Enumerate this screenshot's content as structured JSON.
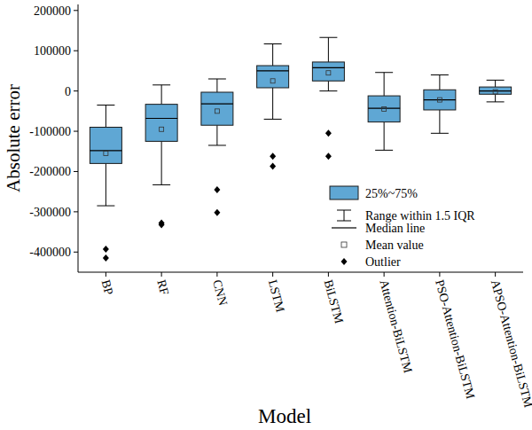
{
  "chart_data": {
    "type": "box",
    "x_label": "Model",
    "y_label": "Absolute error",
    "categories": [
      "BP",
      "RF",
      "CNN",
      "LSTM",
      "BiLSTM",
      "Attention-BiLSTM",
      "PSO-Attention-BiLSTM",
      "APSO-Attention-BiLSTM"
    ],
    "series": [
      {
        "name": "25%~75%",
        "color": "#5fa7d4",
        "whisker_low": [
          -285000,
          -233000,
          -135000,
          -70000,
          0,
          -147000,
          -105000,
          -27000
        ],
        "q1": [
          -180000,
          -125000,
          -85000,
          8000,
          25000,
          -77000,
          -47000,
          -8000
        ],
        "median": [
          -148000,
          -68000,
          -32000,
          50000,
          58000,
          -43000,
          -22000,
          0
        ],
        "q3": [
          -90000,
          -33000,
          -3000,
          63000,
          72000,
          -12000,
          3000,
          10000
        ],
        "whisker_high": [
          -35000,
          15000,
          30000,
          117000,
          133000,
          46000,
          40000,
          27000
        ],
        "mean": [
          -155000,
          -95000,
          -50000,
          25000,
          45000,
          -45000,
          -22000,
          -2000
        ],
        "outliers": [
          [
            -393000,
            -415000
          ],
          [
            -328000,
            -332000
          ],
          [
            -245000,
            -302000
          ],
          [
            -162000,
            -187000
          ],
          [
            -105000,
            -162000
          ],
          [],
          [],
          []
        ]
      }
    ],
    "legend_labels": {
      "whisker": "Range within 1.5 IQR",
      "median": "Median line",
      "mean": "Mean value",
      "outlier": "Outlier"
    },
    "legend": "center right",
    "ylim": [
      -450000,
      215000
    ],
    "yticks": [
      -400000,
      -300000,
      -200000,
      -100000,
      0,
      100000,
      200000
    ]
  }
}
